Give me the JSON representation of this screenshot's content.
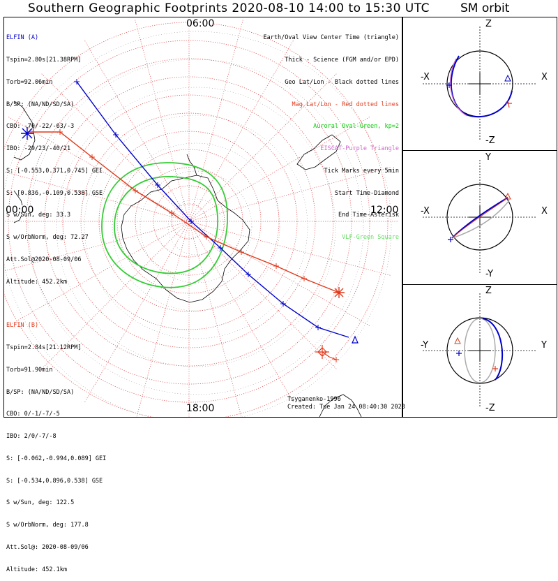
{
  "title": "Southern Geographic Footprints 2020-08-10 14:00 to 15:30 UTC",
  "sm_title": "SM orbit",
  "hour_labels": {
    "top": "06:00",
    "left": "00:00",
    "right": "12:00",
    "bottom": "18:00"
  },
  "elfin_a": {
    "lines": [
      "ELFIN (A)",
      "Tspin=2.80s[21.38RPM]",
      "Torb=92.06min",
      "B/SP: (NA/ND/SD/SA)",
      "CBO: -70/-22/-63/-3",
      "IBO: -29/23/-40/21",
      "S: [-0.553,0.371,0.745] GEI",
      "S: [0.836,-0.109,0.538] GSE",
      "S w/Sun, deg: 33.3",
      "S w/OrbNorm, deg: 72.27",
      "Att.Sol@2020-08-09/06",
      "Altitude: 452.2km"
    ]
  },
  "elfin_b": {
    "lines": [
      "ELFIN (B)",
      "Tspin=2.84s[21.12RPM]",
      "Torb=91.90min",
      "B/SP: (NA/ND/SD/SA)",
      "CBO: 0/-1/-7/-5",
      "IBO: 2/0/-7/-8",
      "S: [-0.062,-0.994,0.089] GEI",
      "S: [-0.534,0.896,0.538] GSE",
      "S w/Sun, deg: 122.5",
      "S w/OrbNorm, deg: 177.8",
      "Att.Sol@: 2020-08-09/06",
      "Altitude: 452.1km"
    ]
  },
  "legend": [
    {
      "text": "Earth/Oval View Center Time (triangle)",
      "color": "#000000"
    },
    {
      "text": "Thick - Science (FGM and/or EPD)",
      "color": "#000000"
    },
    {
      "text": "Geo Lat/Lon - Black dotted lines",
      "color": "#000000"
    },
    {
      "text": "Mag Lat/Lon - Red dotted lines",
      "color": "#e0391b"
    },
    {
      "text": "Auroral Oval-Green, kp=2",
      "color": "#00cc00"
    },
    {
      "text": "EISCAT-Purple Triangle",
      "color": "#cc66cc"
    },
    {
      "text": "Tick Marks every 5min",
      "color": "#000000"
    },
    {
      "text": "Start Time-Diamond",
      "color": "#000000"
    },
    {
      "text": "End Time-Asterisk",
      "color": "#000000"
    },
    {
      "text": "VLF-Green Square",
      "color": "#66dd66"
    }
  ],
  "credit": "Tsyganenko-1996",
  "created": "Created: Tue Jan 24 08:40:30 2023",
  "sm_panels": [
    {
      "top": "Z",
      "bottom": "-Z",
      "left": "-X",
      "right": "X"
    },
    {
      "top": "Y",
      "bottom": "-Y",
      "left": "-X",
      "right": "X"
    },
    {
      "top": "Z",
      "bottom": "-Z",
      "left": "-Y",
      "right": "Y"
    }
  ],
  "chart_data": {
    "type": "scatter",
    "title": "Southern Geographic Footprints 2020-08-10 14:00 to 15:30 UTC",
    "projection": "south-polar",
    "series": [
      {
        "name": "ELFIN (A)",
        "color": "#0000cc"
      },
      {
        "name": "ELFIN (B)",
        "color": "#e0391b"
      }
    ],
    "colors": {
      "elfin_a": "#0000cc",
      "elfin_b": "#e0391b",
      "oval": "#33cc33",
      "grid": "#e05050",
      "sm_gray": "#aaaaaa"
    }
  }
}
